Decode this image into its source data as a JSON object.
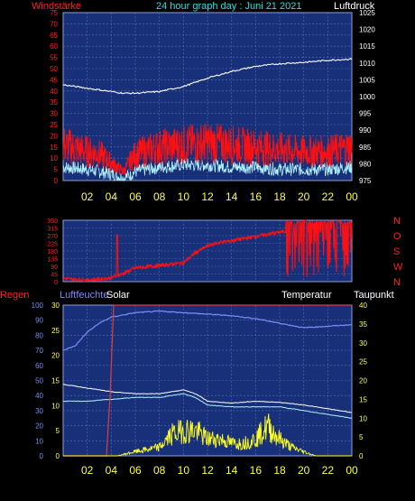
{
  "colors": {
    "background": "#000000",
    "plot_bg": "#18307a",
    "grid": "#5a6fa8",
    "wind_speed": "#ff1010",
    "wind_gust": "#b0f0ff",
    "pressure": "#ffffff",
    "wind_dir": "#ff1010",
    "humidity": "#7d8ef0",
    "solar": "#ffff20",
    "temperature": "#ffffff",
    "dewpoint": "#b0f0ff",
    "rain": "#e03a3a",
    "label_red": "#ff2020",
    "label_yellow": "#ffff40",
    "title_cyan": "#20e0e0"
  },
  "chart_data": [
    {
      "type": "line",
      "title": "24 hour graph day : Juni 21 2021",
      "left_axis_label": "Windstärke",
      "right_axis_label": "Luftdruck",
      "x_ticks": [
        "02",
        "04",
        "06",
        "08",
        "10",
        "12",
        "14",
        "16",
        "18",
        "20",
        "22",
        "00"
      ],
      "left_ticks": [
        "0",
        "5",
        "10",
        "15",
        "20",
        "25",
        "30",
        "35",
        "40",
        "45",
        "50",
        "55",
        "60",
        "65",
        "70",
        "75"
      ],
      "right_ticks": [
        "975",
        "980",
        "985",
        "990",
        "995",
        "1000",
        "1005",
        "1010",
        "1015",
        "1020",
        "1025"
      ],
      "ylim_left": [
        0,
        75
      ],
      "ylim_right": [
        975,
        1025
      ],
      "pressure_hours": [
        0,
        2,
        4,
        5,
        6,
        8,
        10,
        12,
        14,
        16,
        18,
        20,
        22,
        24
      ],
      "pressure_values": [
        1003.5,
        1002.5,
        1001.5,
        1001,
        1001,
        1001.5,
        1003,
        1005.5,
        1007.5,
        1009,
        1009.8,
        1010.2,
        1010.8,
        1011.2
      ],
      "wind_hours": [
        0,
        2,
        3,
        4,
        5,
        6,
        8,
        10,
        12,
        14,
        16,
        18,
        20,
        22,
        24
      ],
      "wind_speed_avg": [
        16,
        13,
        12,
        8,
        4,
        12,
        15,
        16,
        17,
        16,
        15,
        14,
        13,
        13,
        15
      ],
      "wind_gust_avg": [
        6,
        5,
        4,
        3,
        1,
        4,
        6,
        7,
        7,
        6,
        6,
        5,
        5,
        5,
        6
      ],
      "series": [
        {
          "name": "Windstärke"
        },
        {
          "name": "Luftdruck"
        }
      ]
    },
    {
      "type": "line",
      "right_ticks": [
        "N",
        "W",
        "S",
        "O",
        "N"
      ],
      "left_ticks": [
        "0",
        "45",
        "90",
        "135",
        "180",
        "225",
        "270",
        "315",
        "360"
      ],
      "ylim": [
        0,
        360
      ],
      "dir_hours": [
        0,
        2,
        3,
        4,
        5,
        6,
        8,
        10,
        11,
        12,
        13,
        14,
        16,
        18,
        19
      ],
      "dir_values": [
        18,
        10,
        15,
        22,
        48,
        80,
        95,
        110,
        170,
        210,
        230,
        240,
        265,
        290,
        300
      ],
      "dir_spike_hour": 4.5,
      "dir_spike_value": 275,
      "dir_chaotic_from_hour": 18.5
    },
    {
      "type": "line",
      "labels": {
        "rain": "Regen",
        "humidity": "Luftfeuchte",
        "solar": "Solar",
        "temperature": "Temperatur",
        "dewpoint": "Taupunkt"
      },
      "x_ticks": [
        "02",
        "04",
        "06",
        "08",
        "10",
        "12",
        "14",
        "16",
        "18",
        "20",
        "22",
        "00"
      ],
      "left_ticks": [
        "0",
        "10",
        "20",
        "30",
        "40",
        "50",
        "60",
        "70",
        "80",
        "90",
        "100"
      ],
      "rain_ticks": [
        "0",
        "5",
        "10",
        "15",
        "20",
        "25",
        "30"
      ],
      "temp_ticks": [
        "0",
        "5",
        "10",
        "15",
        "20",
        "25",
        "30",
        "35",
        "40"
      ],
      "humidity_hours": [
        0,
        1,
        2,
        3,
        4,
        6,
        8,
        10,
        12,
        14,
        16,
        18,
        20,
        22,
        24
      ],
      "humidity_values": [
        70,
        73,
        82,
        88,
        92,
        95,
        96,
        95,
        94,
        93,
        91,
        88,
        85,
        86,
        87
      ],
      "temperature_hours": [
        0,
        1,
        2,
        4,
        6,
        8,
        10,
        11,
        12,
        14,
        16,
        18,
        20,
        22,
        24
      ],
      "temperature_values": [
        19,
        18.5,
        18,
        17,
        16.5,
        16.5,
        17.5,
        16.5,
        14.5,
        14,
        14.5,
        14.2,
        13.5,
        12.5,
        11.5
      ],
      "dewpoint_hours": [
        0,
        2,
        4,
        6,
        8,
        10,
        11,
        12,
        14,
        16,
        18,
        20,
        22,
        24
      ],
      "dewpoint_values": [
        14.5,
        14.5,
        15,
        15.5,
        15.5,
        16.5,
        15.5,
        13.5,
        13,
        13,
        13,
        12,
        11,
        10
      ],
      "rain_hours": [
        0,
        3.6,
        3.9,
        4.2,
        5,
        24
      ],
      "rain_values": [
        0,
        0,
        12,
        30,
        30,
        30
      ],
      "solar_hours": [
        0,
        4.5,
        6,
        8,
        9,
        10,
        11,
        12,
        13,
        14,
        15,
        16,
        17,
        18,
        19,
        20,
        21,
        24
      ],
      "solar_values": [
        0,
        0,
        1,
        2,
        5,
        6,
        6,
        4,
        4,
        3,
        3,
        4,
        7,
        4,
        2,
        1,
        0,
        0
      ]
    }
  ]
}
